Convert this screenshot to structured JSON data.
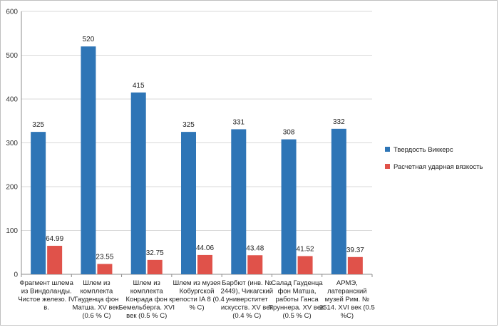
{
  "chart_data": {
    "type": "bar",
    "title": "",
    "xlabel": "",
    "ylabel": "",
    "ylim": [
      0,
      600
    ],
    "yticks": [
      0,
      100,
      200,
      300,
      400,
      500,
      600
    ],
    "grid": true,
    "legend_position": "right",
    "categories": [
      [
        "Фрагмент шлема",
        "из Виндоланды.",
        "Чистое железо. IV",
        "в."
      ],
      [
        "Шлем из",
        "комплекта",
        "Гауденца фон",
        "Матша. XV век.",
        "(0.6 % C)"
      ],
      [
        "Шлем из",
        "комплекта",
        "Конрада фон",
        "Бемельберга. XVI",
        "век (0.5 % C)"
      ],
      [
        "Шлем из музея",
        "Кобургской",
        "крепости IA 8 (0.4",
        "% C)"
      ],
      [
        "Барбют (инв. №",
        "2449), Чикагский",
        "универститет",
        "искусств. XV век",
        "(0.4 % C)"
      ],
      [
        "Салад Гауденца",
        "фон Матша,",
        "работы  Ганса",
        "Пруннера. XV век.",
        "(0.5 % C)"
      ],
      [
        "АРМЭ,",
        "латеранский",
        "музей Рим. №",
        "2514. XVI век (0.5",
        "%C)"
      ]
    ],
    "series": [
      {
        "name": "Твердость Виккерс",
        "color": "#2e75b6",
        "values": [
          325,
          520,
          415,
          325,
          331,
          308,
          332
        ],
        "labels": [
          "325",
          "520",
          "415",
          "325",
          "331",
          "308",
          "332"
        ]
      },
      {
        "name": "Расчетная ударная вязкость",
        "color": "#e0524a",
        "values": [
          64.99,
          23.55,
          32.75,
          44.06,
          43.48,
          41.52,
          39.37
        ],
        "labels": [
          "64.99",
          "23.55",
          "32.75",
          "44.06",
          "43.48",
          "41.52",
          "39.37"
        ]
      }
    ]
  }
}
